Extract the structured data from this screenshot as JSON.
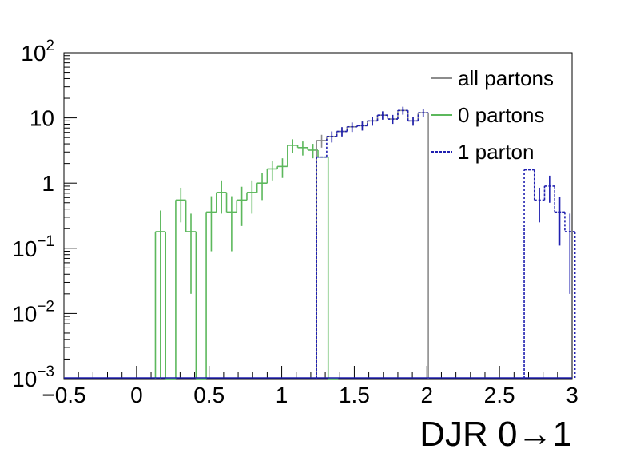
{
  "chart_data": {
    "type": "histogram-step",
    "xlabel": "DJR 0→1",
    "ylabel": "",
    "log_y": true,
    "xlim": [
      -0.5,
      3.0
    ],
    "ylim": [
      0.001,
      100
    ],
    "x_ticks": [
      {
        "v": -0.5,
        "label": "−0.5"
      },
      {
        "v": 0,
        "label": "0"
      },
      {
        "v": 0.5,
        "label": "0.5"
      },
      {
        "v": 1,
        "label": "1"
      },
      {
        "v": 1.5,
        "label": "1.5"
      },
      {
        "v": 2,
        "label": "2"
      },
      {
        "v": 2.5,
        "label": "2.5"
      },
      {
        "v": 3,
        "label": "3"
      }
    ],
    "y_ticks": [
      {
        "v": 0.001,
        "base": "10",
        "exp": "−3"
      },
      {
        "v": 0.01,
        "base": "10",
        "exp": "−2"
      },
      {
        "v": 0.1,
        "base": "10",
        "exp": "−1"
      },
      {
        "v": 1,
        "base": "1",
        "exp": ""
      },
      {
        "v": 10,
        "base": "10",
        "exp": ""
      },
      {
        "v": 100,
        "base": "10",
        "exp": "2"
      }
    ],
    "legend_position": "top-right",
    "bin_width": 0.07,
    "series": [
      {
        "name": "all partons",
        "color": "#8c8c8c",
        "dash": "solid",
        "bins": [
          [
            1.24,
            4.5,
            1.0
          ],
          [
            1.31,
            5.2,
            1.0
          ],
          [
            1.38,
            6.2,
            1.0
          ],
          [
            1.45,
            7.3,
            1.2
          ],
          [
            1.52,
            7.6,
            1.2
          ],
          [
            1.59,
            9.0,
            1.4
          ],
          [
            1.66,
            11.0,
            1.6
          ],
          [
            1.73,
            9.6,
            1.5
          ],
          [
            1.8,
            13.0,
            1.8
          ],
          [
            1.87,
            9.0,
            1.4
          ],
          [
            1.94,
            12.0,
            1.7
          ]
        ]
      },
      {
        "name": "0 partons",
        "color": "#5cb85c",
        "dash": "solid",
        "bins": [
          [
            0.13,
            0.18,
            0.2
          ],
          [
            0.2,
            0.001,
            0
          ],
          [
            0.27,
            0.55,
            0.3
          ],
          [
            0.34,
            0.18,
            0.16
          ],
          [
            0.41,
            0.001,
            0
          ],
          [
            0.48,
            0.36,
            0.27
          ],
          [
            0.55,
            0.72,
            0.38
          ],
          [
            0.62,
            0.36,
            0.27
          ],
          [
            0.69,
            0.55,
            0.33
          ],
          [
            0.76,
            0.72,
            0.38
          ],
          [
            0.83,
            1.0,
            0.45
          ],
          [
            0.9,
            1.65,
            0.55
          ],
          [
            0.97,
            1.8,
            0.6
          ],
          [
            1.04,
            3.8,
            0.9
          ],
          [
            1.11,
            3.5,
            0.85
          ],
          [
            1.18,
            3.2,
            0.8
          ],
          [
            1.25,
            2.5,
            0
          ],
          [
            1.32,
            0.001,
            0
          ]
        ]
      },
      {
        "name": "1 parton",
        "color": "#2020b0",
        "dash": "dashed",
        "bins": [
          [
            1.24,
            2.5,
            0
          ],
          [
            1.31,
            5.2,
            1.0
          ],
          [
            1.38,
            6.2,
            1.0
          ],
          [
            1.45,
            7.3,
            1.2
          ],
          [
            1.52,
            7.6,
            1.2
          ],
          [
            1.59,
            9.0,
            1.4
          ],
          [
            1.66,
            11.0,
            1.6
          ],
          [
            1.73,
            9.6,
            1.5
          ],
          [
            1.8,
            13.0,
            1.8
          ],
          [
            1.87,
            9.0,
            1.4
          ],
          [
            1.94,
            12.0,
            1.7
          ],
          [
            2.67,
            1.6,
            0
          ],
          [
            2.74,
            0.55,
            0.3
          ],
          [
            2.81,
            0.9,
            0.4
          ],
          [
            2.88,
            0.36,
            0.25
          ],
          [
            2.95,
            0.18,
            0.16
          ]
        ]
      }
    ]
  }
}
